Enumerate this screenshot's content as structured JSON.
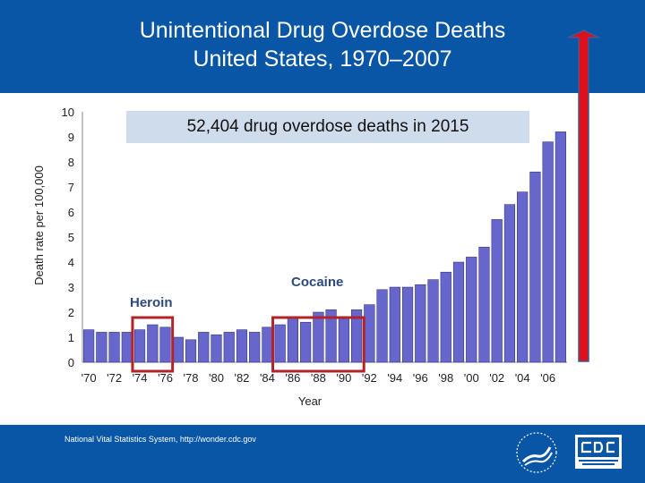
{
  "header": {
    "title_line1": "Unintentional Drug Overdose Deaths",
    "title_line2": "United States, 1970–2007"
  },
  "callout": "52,404 drug overdose deaths in 2015",
  "annotations": {
    "heroin": "Heroin",
    "cocaine": "Cocaine"
  },
  "footer": {
    "source": "National Vital Statistics System, http://wonder.cdc.gov"
  },
  "colors": {
    "header_bg": "#0a56a6",
    "bar": "#6666cc",
    "highlight_box": "#b3232a",
    "arrow": "#e0101a",
    "arrow_outline": "#3b5b9a",
    "callout_bg": "#cfdcec",
    "annotation": "#2d4a80"
  },
  "icons": {
    "seal": "hhs-seal-icon",
    "logo": "cdc-logo-icon",
    "arrow": "up-arrow-icon"
  },
  "chart_data": {
    "type": "bar",
    "title": "",
    "xlabel": "Year",
    "ylabel": "Death rate per 100,000",
    "ylim": [
      0,
      10
    ],
    "yticks": [
      0,
      1,
      2,
      3,
      4,
      5,
      6,
      7,
      8,
      9,
      10
    ],
    "grid": false,
    "xtick_labels": [
      "'70",
      "'72",
      "'74",
      "'76",
      "'78",
      "'80",
      "'82",
      "'84",
      "'86",
      "'88",
      "'90",
      "'92",
      "'94",
      "'96",
      "'98",
      "'00",
      "'02",
      "'04",
      "'06"
    ],
    "categories": [
      "1970",
      "1971",
      "1972",
      "1973",
      "1974",
      "1975",
      "1976",
      "1977",
      "1978",
      "1979",
      "1980",
      "1981",
      "1982",
      "1983",
      "1984",
      "1985",
      "1986",
      "1987",
      "1988",
      "1989",
      "1990",
      "1991",
      "1992",
      "1993",
      "1994",
      "1995",
      "1996",
      "1997",
      "1998",
      "1999",
      "2000",
      "2001",
      "2002",
      "2003",
      "2004",
      "2005",
      "2006",
      "2007"
    ],
    "values": [
      1.3,
      1.2,
      1.2,
      1.2,
      1.3,
      1.5,
      1.4,
      1.0,
      0.9,
      1.2,
      1.1,
      1.2,
      1.3,
      1.2,
      1.4,
      1.5,
      1.8,
      1.6,
      2.0,
      2.1,
      1.8,
      2.1,
      2.3,
      2.9,
      3.0,
      3.0,
      3.1,
      3.3,
      3.6,
      4.0,
      4.2,
      4.6,
      5.7,
      6.3,
      6.8,
      7.6,
      8.8,
      9.2
    ],
    "highlights": [
      {
        "label": "Heroin",
        "from": "1974",
        "to": "1976"
      },
      {
        "label": "Cocaine",
        "from": "1985",
        "to": "1991"
      }
    ]
  }
}
